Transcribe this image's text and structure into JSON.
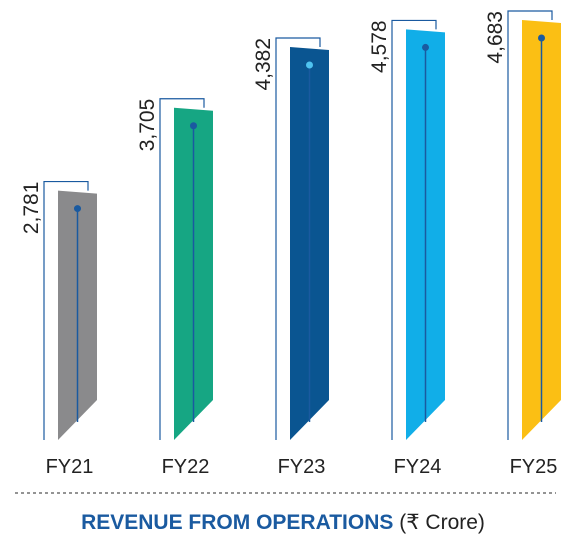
{
  "chart_data": {
    "type": "bar",
    "title": "REVENUE FROM OPERATIONS",
    "unit": "(₹ Crore)",
    "categories": [
      "FY21",
      "FY22",
      "FY23",
      "FY24",
      "FY25"
    ],
    "values": [
      2781,
      3705,
      4382,
      4578,
      4683
    ],
    "value_labels": [
      "2,781",
      "3,705",
      "4,382",
      "4,578",
      "4,683"
    ],
    "colors": [
      "#8a8a8c",
      "#16a683",
      "#0a5591",
      "#11aee8",
      "#fbbf14"
    ]
  }
}
